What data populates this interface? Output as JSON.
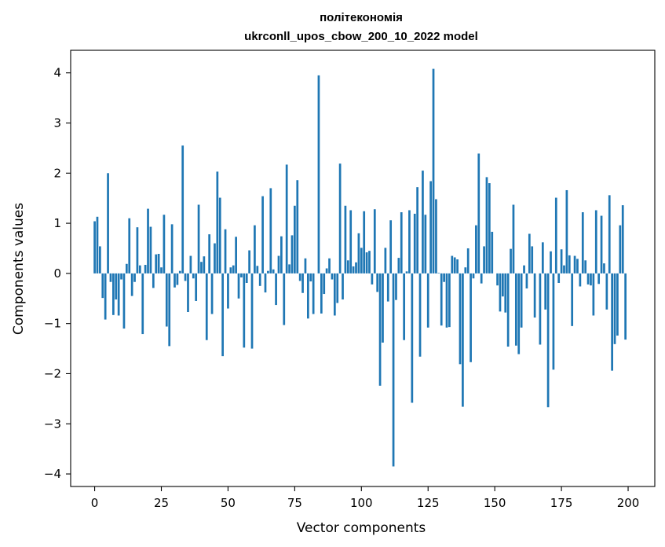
{
  "chart_data": {
    "type": "bar",
    "title": "політекономія",
    "subtitle": "ukrconll_upos_cbow_200_10_2022 model",
    "xlabel": "Vector components",
    "ylabel": "Components values",
    "xlim": [
      -9,
      210
    ],
    "ylim": [
      -4.25,
      4.45
    ],
    "xticks": [
      0,
      25,
      50,
      75,
      100,
      125,
      150,
      175,
      200
    ],
    "yticks": [
      -4,
      -3,
      -2,
      -1,
      0,
      1,
      2,
      3,
      4
    ],
    "xtick_labels": [
      "0",
      "25",
      "50",
      "75",
      "100",
      "125",
      "150",
      "175",
      "200"
    ],
    "ytick_labels": [
      "−4",
      "−3",
      "−2",
      "−1",
      "0",
      "1",
      "2",
      "3",
      "4"
    ],
    "grid": false,
    "bar_color": "#1f77b4",
    "values": [
      1.04,
      1.13,
      0.54,
      -0.49,
      -0.92,
      2.0,
      -0.17,
      -0.83,
      -0.52,
      -0.84,
      -0.12,
      -1.1,
      0.19,
      1.1,
      -0.45,
      -0.17,
      0.92,
      0.16,
      -1.21,
      0.17,
      1.29,
      0.93,
      -0.29,
      0.38,
      0.39,
      0.12,
      1.17,
      -1.06,
      -1.45,
      0.98,
      -0.28,
      -0.23,
      0.05,
      2.55,
      -0.15,
      -0.77,
      0.35,
      -0.1,
      -0.55,
      1.37,
      0.23,
      0.34,
      -1.33,
      0.78,
      -0.81,
      0.6,
      2.03,
      1.51,
      -1.65,
      0.88,
      -0.7,
      0.12,
      0.16,
      0.73,
      -0.5,
      -0.08,
      -1.48,
      -0.19,
      0.46,
      -1.5,
      0.96,
      0.15,
      -0.25,
      1.54,
      -0.38,
      0.05,
      1.7,
      0.08,
      -0.63,
      0.35,
      0.74,
      -1.03,
      2.17,
      0.18,
      0.76,
      1.35,
      1.86,
      -0.15,
      -0.39,
      0.3,
      -0.9,
      -0.16,
      -0.81,
      0.0,
      3.95,
      -0.8,
      -0.41,
      0.1,
      0.3,
      -0.12,
      -0.84,
      -0.59,
      2.19,
      -0.52,
      1.35,
      0.26,
      1.26,
      0.14,
      0.22,
      0.8,
      0.51,
      1.24,
      0.42,
      0.45,
      -0.22,
      1.28,
      -0.37,
      -2.24,
      -1.38,
      0.51,
      -0.56,
      1.06,
      -3.85,
      -0.53,
      0.31,
      1.22,
      -1.33,
      0.04,
      1.26,
      -2.58,
      1.19,
      1.72,
      -1.66,
      2.05,
      1.17,
      -1.08,
      1.84,
      4.08,
      1.48,
      0.01,
      -1.04,
      -0.17,
      -1.08,
      -1.07,
      0.35,
      0.32,
      0.28,
      -1.81,
      -2.66,
      0.12,
      0.5,
      -1.77,
      -0.1,
      0.96,
      2.39,
      -0.2,
      0.54,
      1.92,
      1.8,
      0.83,
      0.0,
      -0.24,
      -0.76,
      -0.46,
      -0.78,
      -1.46,
      0.49,
      1.37,
      -1.44,
      -1.61,
      -1.08,
      0.16,
      -0.3,
      0.79,
      0.54,
      -0.88,
      0.0,
      -1.42,
      0.62,
      -0.72,
      -2.67,
      0.44,
      -1.92,
      1.51,
      -0.19,
      0.48,
      0.16,
      1.66,
      0.36,
      -1.05,
      0.35,
      0.29,
      -0.26,
      1.22,
      0.26,
      -0.22,
      -0.24,
      -0.84,
      1.26,
      -0.21,
      1.15,
      0.2,
      -0.72,
      1.56,
      -1.94,
      -1.41,
      -1.24,
      0.96,
      1.36,
      -1.32
    ]
  }
}
